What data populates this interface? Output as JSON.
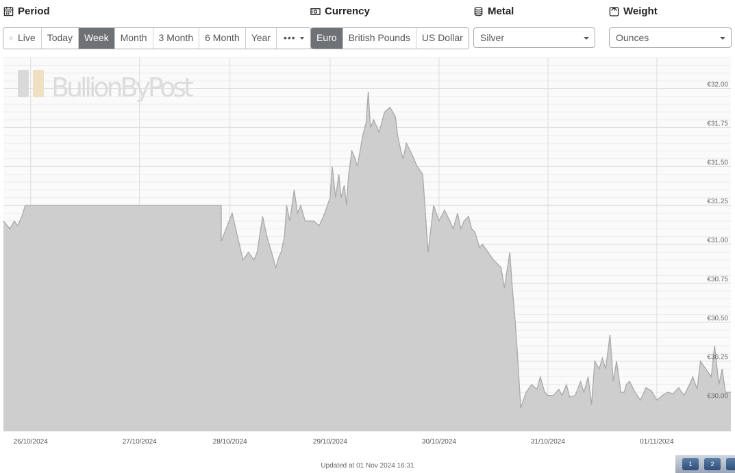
{
  "controls": {
    "period": {
      "title": "Period",
      "options": [
        "Live",
        "Today",
        "Week",
        "Month",
        "3 Month",
        "6 Month",
        "Year",
        "•••"
      ],
      "selected": "Week"
    },
    "currency": {
      "title": "Currency",
      "options": [
        "Euro",
        "British Pounds",
        "US Dollar"
      ],
      "selected": "Euro"
    },
    "metal": {
      "title": "Metal",
      "value": "Silver"
    },
    "weight": {
      "title": "Weight",
      "value": "Ounces"
    }
  },
  "watermark": "BullionByPost",
  "footer": "Updated at 01 Nov 2024 16:31",
  "taskbar": {
    "items": [
      "1",
      "2",
      ""
    ]
  },
  "colors": {
    "fill": "#cbcbcb",
    "line": "#a9a9a9",
    "active_button": "#6e7175"
  },
  "chart_data": {
    "type": "area",
    "title": "",
    "xlabel": "",
    "ylabel": "",
    "currency_symbol": "€",
    "ylim": [
      29.8,
      32.2
    ],
    "y_ticks": [
      "€30.00",
      "€30.25",
      "€30.50",
      "€30.75",
      "€31.00",
      "€31.25",
      "€31.50",
      "€31.75",
      "€32.00"
    ],
    "y_tick_values": [
      30.0,
      30.25,
      30.5,
      30.75,
      31.0,
      31.25,
      31.5,
      31.75,
      32.0
    ],
    "x_ticks": [
      "26/10/2024",
      "27/10/2024",
      "28/10/2024",
      "29/10/2024",
      "30/10/2024",
      "31/10/2024",
      "01/11/2024"
    ],
    "x_tick_positions": [
      0.25,
      1.25,
      2.08,
      3.0,
      4.0,
      5.0,
      6.0
    ],
    "xlim": [
      0,
      6.68
    ],
    "grid": true,
    "x": [
      0.0,
      0.06,
      0.1,
      0.13,
      0.17,
      0.2,
      0.2,
      1.5,
      2.0,
      2.0,
      2.1,
      2.15,
      2.2,
      2.25,
      2.3,
      2.33,
      2.38,
      2.42,
      2.47,
      2.5,
      2.53,
      2.55,
      2.58,
      2.6,
      2.63,
      2.67,
      2.7,
      2.73,
      2.77,
      2.8,
      2.85,
      2.9,
      2.95,
      3.0,
      3.02,
      3.05,
      3.08,
      3.1,
      3.13,
      3.15,
      3.17,
      3.2,
      3.23,
      3.25,
      3.3,
      3.33,
      3.35,
      3.37,
      3.4,
      3.45,
      3.5,
      3.55,
      3.6,
      3.62,
      3.65,
      3.67,
      3.7,
      3.75,
      3.8,
      3.85,
      3.9,
      3.95,
      4.0,
      4.05,
      4.1,
      4.13,
      4.17,
      4.2,
      4.23,
      4.27,
      4.3,
      4.33,
      4.37,
      4.4,
      4.45,
      4.5,
      4.53,
      4.57,
      4.6,
      4.65,
      4.67,
      4.7,
      4.72,
      4.75,
      4.8,
      4.85,
      4.9,
      4.93,
      4.97,
      5.0,
      5.05,
      5.1,
      5.13,
      5.17,
      5.2,
      5.25,
      5.3,
      5.33,
      5.37,
      5.4,
      5.43,
      5.47,
      5.5,
      5.53,
      5.57,
      5.6,
      5.63,
      5.67,
      5.7,
      5.72,
      5.75,
      5.8,
      5.85,
      5.9,
      5.95,
      6.0,
      6.05,
      6.1,
      6.15,
      6.2,
      6.25,
      6.3,
      6.33,
      6.37,
      6.4,
      6.45,
      6.5,
      6.53,
      6.57,
      6.6,
      6.63,
      6.68
    ],
    "values": [
      31.15,
      31.1,
      31.15,
      31.12,
      31.18,
      31.25,
      31.25,
      31.25,
      31.25,
      31.02,
      31.2,
      31.05,
      30.9,
      30.95,
      30.9,
      30.95,
      31.18,
      31.05,
      30.93,
      30.85,
      30.92,
      30.95,
      31.05,
      31.25,
      31.15,
      31.35,
      31.2,
      31.25,
      31.15,
      31.15,
      31.15,
      31.12,
      31.2,
      31.3,
      31.5,
      31.3,
      31.45,
      31.3,
      31.38,
      31.25,
      31.45,
      31.6,
      31.55,
      31.5,
      31.7,
      31.78,
      31.98,
      31.75,
      31.8,
      31.72,
      31.85,
      31.88,
      31.82,
      31.7,
      31.6,
      31.55,
      31.65,
      31.58,
      31.5,
      31.45,
      30.95,
      31.25,
      31.15,
      31.22,
      31.15,
      31.1,
      31.2,
      31.1,
      31.15,
      31.18,
      31.1,
      31.08,
      30.98,
      31.0,
      30.95,
      30.9,
      30.88,
      30.85,
      30.72,
      30.95,
      30.75,
      30.5,
      30.3,
      29.95,
      30.05,
      30.1,
      30.07,
      30.15,
      30.05,
      30.03,
      30.03,
      30.07,
      30.03,
      30.1,
      30.02,
      30.03,
      30.12,
      30.05,
      30.15,
      29.97,
      30.25,
      30.2,
      30.27,
      30.2,
      30.42,
      30.12,
      30.25,
      30.05,
      30.05,
      30.1,
      30.12,
      30.05,
      30.0,
      30.08,
      30.06,
      30.0,
      30.03,
      30.05,
      30.04,
      30.08,
      30.03,
      30.1,
      30.15,
      30.07,
      30.25,
      30.2,
      30.15,
      30.35,
      30.1,
      30.2,
      30.05,
      30.05
    ]
  }
}
